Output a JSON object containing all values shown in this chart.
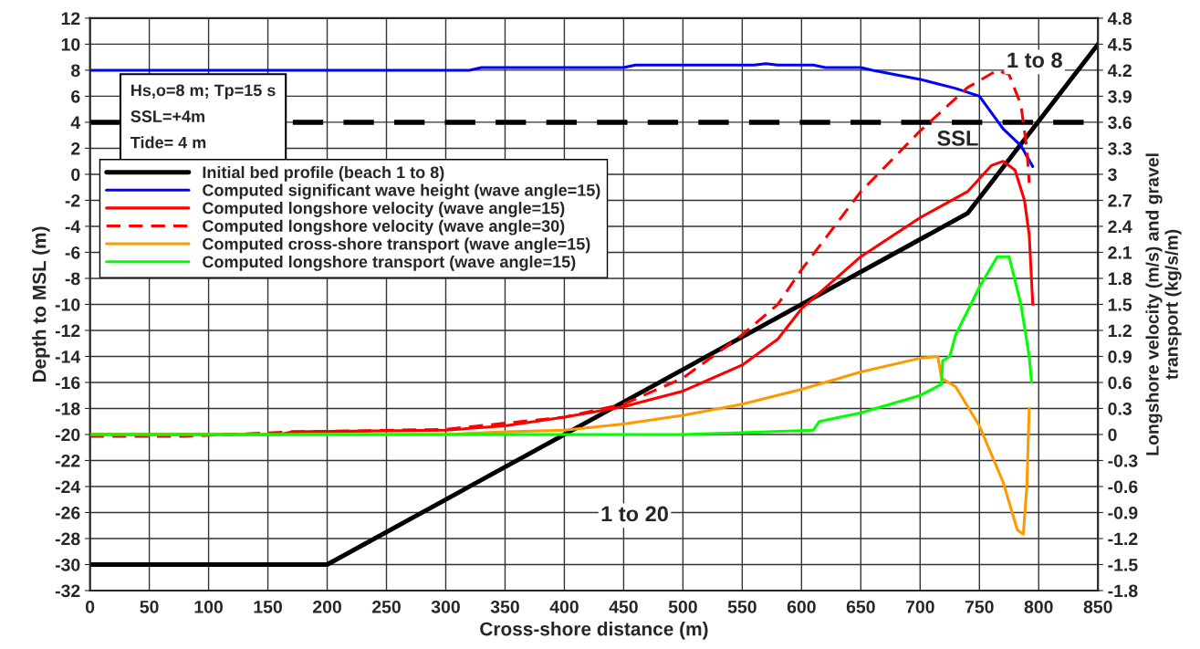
{
  "chart_data": {
    "type": "line",
    "xlabel": "Cross-shore distance (m)",
    "ylabel": "Depth to MSL (m)",
    "y2label": "Longshore velocity (m/s) and gravel\ntransport (kg/s/m)",
    "xlim": [
      0,
      850
    ],
    "xticks": [
      0,
      50,
      100,
      150,
      200,
      250,
      300,
      350,
      400,
      450,
      500,
      550,
      600,
      650,
      700,
      750,
      800,
      850
    ],
    "ylim": [
      -32,
      12
    ],
    "yticks": [
      -32,
      -30,
      -28,
      -26,
      -24,
      -22,
      -20,
      -18,
      -16,
      -14,
      -12,
      -10,
      -8,
      -6,
      -4,
      -2,
      0,
      2,
      4,
      6,
      8,
      10,
      12
    ],
    "y2lim": [
      -1.8,
      4.8
    ],
    "y2ticks": [
      -1.8,
      -1.5,
      -1.2,
      -0.9,
      -0.6,
      -0.3,
      0,
      0.3,
      0.6,
      0.9,
      1.2,
      1.5,
      1.8,
      2.1,
      2.4,
      2.7,
      3,
      3.3,
      3.6,
      3.9,
      4.2,
      4.5,
      4.8
    ],
    "grid": true,
    "legend": "left",
    "marker": "none",
    "ref_lines": [
      {
        "axis": "y",
        "value": 4,
        "label": "SSL",
        "color": "#000000",
        "line_style": "dashed"
      }
    ],
    "annotations": [
      "Hs,o=8 m; Tp=15 s",
      "SSL=+4m",
      "Tide= 4 m",
      "1 to 20",
      "1 to 8"
    ],
    "series": [
      {
        "name": "Initial bed profile (beach 1 to 8)",
        "color": "#000000",
        "x": [
          0,
          200,
          740,
          850
        ],
        "values": [
          -30,
          -30,
          -3,
          10
        ]
      },
      {
        "name": "Computed significant wave height (wave angle=15)",
        "color": "#0000ff",
        "x": [
          0,
          320,
          330,
          450,
          460,
          560,
          570,
          580,
          610,
          620,
          650,
          660,
          700,
          730,
          750,
          770,
          785,
          795
        ],
        "values": [
          8,
          8,
          8.2,
          8.2,
          8.4,
          8.4,
          8.5,
          8.4,
          8.4,
          8.2,
          8.2,
          8,
          7.3,
          6.6,
          6,
          3.5,
          2.2,
          0.6
        ]
      },
      {
        "name": "Computed longshore velocity (wave angle=15)",
        "color": "#ff0000",
        "axis": "y2",
        "x": [
          0,
          160,
          170,
          300,
          350,
          400,
          450,
          500,
          550,
          580,
          600,
          650,
          700,
          740,
          760,
          770,
          780,
          788,
          792,
          795
        ],
        "values": [
          0,
          0,
          0.03,
          0.05,
          0.1,
          0.2,
          0.32,
          0.5,
          0.8,
          1.1,
          1.45,
          2.05,
          2.5,
          2.8,
          3.1,
          3.15,
          3.05,
          2.7,
          2.3,
          1.5
        ]
      },
      {
        "name": "Computed longshore velocity (wave angle=30)",
        "color": "#ff0000",
        "axis": "y2",
        "line_style": "dashed",
        "x": [
          0,
          80,
          170,
          300,
          400,
          450,
          500,
          550,
          580,
          600,
          650,
          700,
          740,
          765,
          775,
          785,
          790,
          792
        ],
        "values": [
          -0.02,
          -0.02,
          0.03,
          0.06,
          0.2,
          0.35,
          0.65,
          1.15,
          1.5,
          1.9,
          2.8,
          3.5,
          4.0,
          4.2,
          4.15,
          3.8,
          3.3,
          2.9
        ]
      },
      {
        "name": "Computed cross-shore transport (wave angle=15)",
        "color": "#ff9900",
        "axis": "y2",
        "x": [
          0,
          300,
          350,
          400,
          450,
          500,
          550,
          600,
          650,
          700,
          715,
          718,
          730,
          750,
          770,
          782,
          787,
          790,
          792
        ],
        "values": [
          0,
          0,
          0.03,
          0.05,
          0.12,
          0.22,
          0.35,
          0.52,
          0.72,
          0.88,
          0.9,
          0.65,
          0.55,
          0.1,
          -0.55,
          -1.1,
          -1.15,
          -0.6,
          0.3
        ]
      },
      {
        "name": "Computed longshore transport (wave angle=15)",
        "color": "#00ff00",
        "axis": "y2",
        "x": [
          0,
          500,
          550,
          610,
          615,
          650,
          700,
          718,
          719,
          725,
          730,
          750,
          765,
          775,
          785,
          792,
          794
        ],
        "values": [
          0,
          0,
          0.02,
          0.05,
          0.15,
          0.25,
          0.45,
          0.58,
          0.85,
          0.9,
          1.15,
          1.7,
          2.05,
          2.05,
          1.5,
          0.9,
          0.6
        ]
      }
    ]
  }
}
